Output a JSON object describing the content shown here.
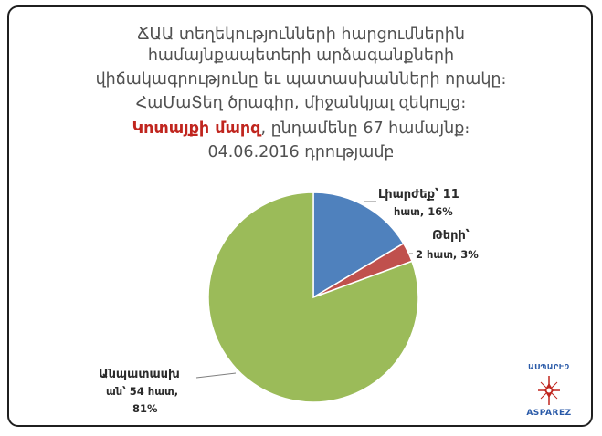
{
  "title": {
    "line1": "ՃԱԱ տեղեկությունների հարցումներին",
    "line2": "համայնքապետերի արձագանքների",
    "line3": "վիճակագրությունը եւ պատասխանների որակը։",
    "line4": "ՀաՄաՏեղ ծրագիր, միջանկյալ զեկույց։",
    "line5_highlight": "Կոտայքի մարզ",
    "line5_rest": ", ընդամենը 67 համայնք։",
    "line6": "04.06.2016 դրությամբ"
  },
  "chart_data": {
    "type": "pie",
    "total": 67,
    "slices": [
      {
        "label_a": "Լիարժեք՝ 11",
        "label_b": "հատ, 16%",
        "count": 11,
        "percent": 16,
        "color": "#4f81bd"
      },
      {
        "label_a": "Թերի՝",
        "label_b": "2 հատ, 3%",
        "count": 2,
        "percent": 3,
        "color": "#c0504d"
      },
      {
        "label_a": "Անպատասխ",
        "label_b": "ան՝ 54 հատ,",
        "label_c": "81%",
        "count": 54,
        "percent": 81,
        "color": "#9bbb59"
      }
    ]
  },
  "logo": {
    "top_text": "ԱՍՊԱՐԷԶ",
    "bottom_text": "ASPAREZ",
    "colors": {
      "blue": "#2a5aa8",
      "red": "#c0251e"
    }
  }
}
